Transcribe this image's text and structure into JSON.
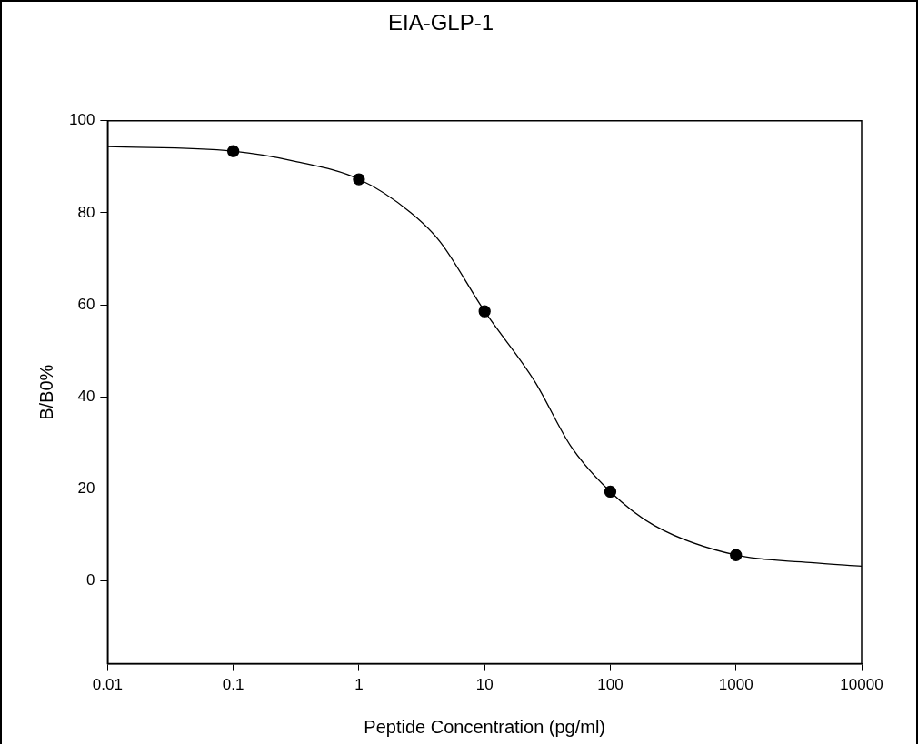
{
  "chart_data": {
    "type": "scatter",
    "title": "EIA-GLP-1",
    "xlabel": "Peptide Concentration (pg/ml)",
    "ylabel": "B/B0%",
    "log": "x",
    "grid": false,
    "legend": false,
    "marker": "circle",
    "xlim": [
      0.01,
      10000
    ],
    "xticks": [
      0.01,
      0.1,
      1,
      10,
      100,
      1000,
      10000
    ],
    "ylim": [
      -18,
      100
    ],
    "yticks": [
      0,
      20,
      40,
      60,
      80,
      100
    ],
    "series": [
      {
        "type": "scatter",
        "color": "#000000",
        "x": [
          0.1,
          1,
          10,
          100,
          1000
        ],
        "values": [
          93.4,
          87.3,
          58.6,
          19.4,
          5.6
        ]
      },
      {
        "type": "line",
        "color": "#000000",
        "marker": "none",
        "line_style": "solid",
        "x": [
          0.01,
          0.1,
          0.31,
          1,
          2.57,
          4.4,
          10,
          25,
          49,
          100,
          222,
          1000,
          3900,
          10000
        ],
        "values": [
          94.4,
          93.4,
          91.2,
          87.3,
          80.1,
          73.8,
          58.6,
          43.4,
          29.1,
          19.4,
          12.1,
          5.6,
          4.0,
          3.2
        ]
      }
    ]
  }
}
